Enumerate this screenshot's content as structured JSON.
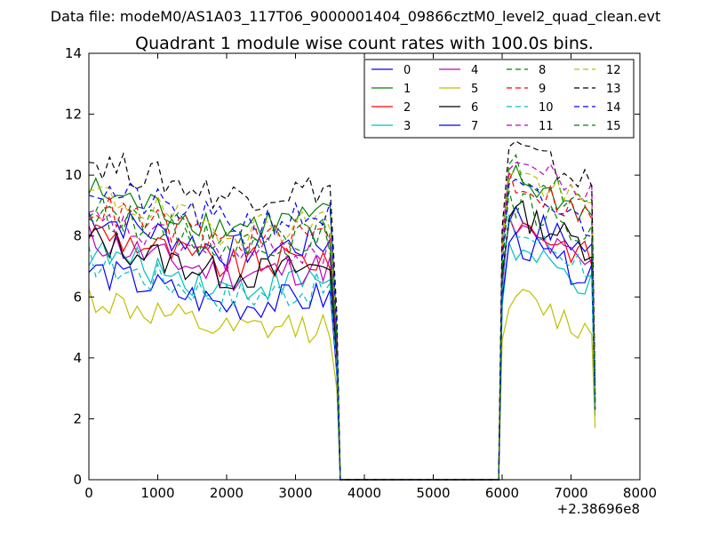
{
  "chart_data": {
    "type": "line",
    "suptitle": "Data file: modeM0/AS1A03_117T06_9000001404_09866cztM0_level2_quad_clean.evt",
    "title": "Quadrant 1 module wise count rates with 100.0s bins.",
    "xlabel": "",
    "ylabel": "",
    "x_offset_label": "+2.38696e8",
    "xlim": [
      0,
      8000
    ],
    "ylim": [
      0,
      14
    ],
    "xticks": [
      0,
      1000,
      2000,
      3000,
      4000,
      5000,
      6000,
      7000,
      8000
    ],
    "yticks": [
      0,
      2,
      4,
      6,
      8,
      10,
      12,
      14
    ],
    "xtick_labels": [
      "0",
      "1000",
      "2000",
      "3000",
      "4000",
      "5000",
      "6000",
      "7000",
      "8000"
    ],
    "ytick_labels": [
      "0",
      "2",
      "4",
      "6",
      "8",
      "10",
      "12",
      "14"
    ],
    "legend_position": "top-right",
    "legend_columns": 4,
    "segments": [
      {
        "x_start": 0,
        "x_end": 3500,
        "step": 100
      },
      {
        "x_start": 3600,
        "x_end": 3600,
        "step": 100
      },
      {
        "x_start": 3650,
        "x_end": 5950,
        "step": 100
      },
      {
        "x_start": 6000,
        "x_end": 7300,
        "step": 100
      },
      {
        "x_start": 7350,
        "x_end": 7350,
        "step": 100
      }
    ],
    "series": [
      {
        "name": "0",
        "color": "#0000ff",
        "dash": "solid",
        "level1": 8.1,
        "level2": 8.8,
        "tail": 2.5
      },
      {
        "name": "1",
        "color": "#008000",
        "dash": "solid",
        "level1": 8.9,
        "level2": 10.0,
        "tail": 2.8
      },
      {
        "name": "2",
        "color": "#ff0000",
        "dash": "solid",
        "level1": 7.6,
        "level2": 8.6,
        "tail": 2.4
      },
      {
        "name": "3",
        "color": "#00bfbf",
        "dash": "solid",
        "level1": 6.9,
        "level2": 7.6,
        "tail": 2.1
      },
      {
        "name": "4",
        "color": "#bf00bf",
        "dash": "solid",
        "level1": 7.3,
        "level2": 8.3,
        "tail": 2.3
      },
      {
        "name": "5",
        "color": "#bfbf00",
        "dash": "solid",
        "level1": 5.4,
        "level2": 6.1,
        "tail": 1.7
      },
      {
        "name": "6",
        "color": "#000000",
        "dash": "solid",
        "level1": 7.3,
        "level2": 8.9,
        "tail": 2.6
      },
      {
        "name": "7",
        "color": "#0000ff",
        "dash": "solid",
        "level1": 6.3,
        "level2": 7.9,
        "tail": 2.3
      },
      {
        "name": "8",
        "color": "#008000",
        "dash": "dashed",
        "level1": 8.3,
        "level2": 10.3,
        "tail": 2.9
      },
      {
        "name": "9",
        "color": "#ff0000",
        "dash": "dashed",
        "level1": 8.4,
        "level2": 9.9,
        "tail": 2.8
      },
      {
        "name": "10",
        "color": "#00bfbf",
        "dash": "dashed",
        "level1": 6.6,
        "level2": 8.3,
        "tail": 2.4
      },
      {
        "name": "11",
        "color": "#bf00bf",
        "dash": "dashed",
        "level1": 7.9,
        "level2": 10.6,
        "tail": 3.0
      },
      {
        "name": "12",
        "color": "#bfbf00",
        "dash": "dashed",
        "level1": 8.8,
        "level2": 10.2,
        "tail": 2.9
      },
      {
        "name": "13",
        "color": "#000000",
        "dash": "dashed",
        "level1": 9.9,
        "level2": 11.0,
        "tail": 3.1
      },
      {
        "name": "14",
        "color": "#0000ff",
        "dash": "dashed",
        "level1": 9.0,
        "level2": 9.6,
        "tail": 2.7
      },
      {
        "name": "15",
        "color": "#008000",
        "dash": "dashed",
        "level1": 8.4,
        "level2": 9.2,
        "tail": 2.6
      }
    ]
  }
}
